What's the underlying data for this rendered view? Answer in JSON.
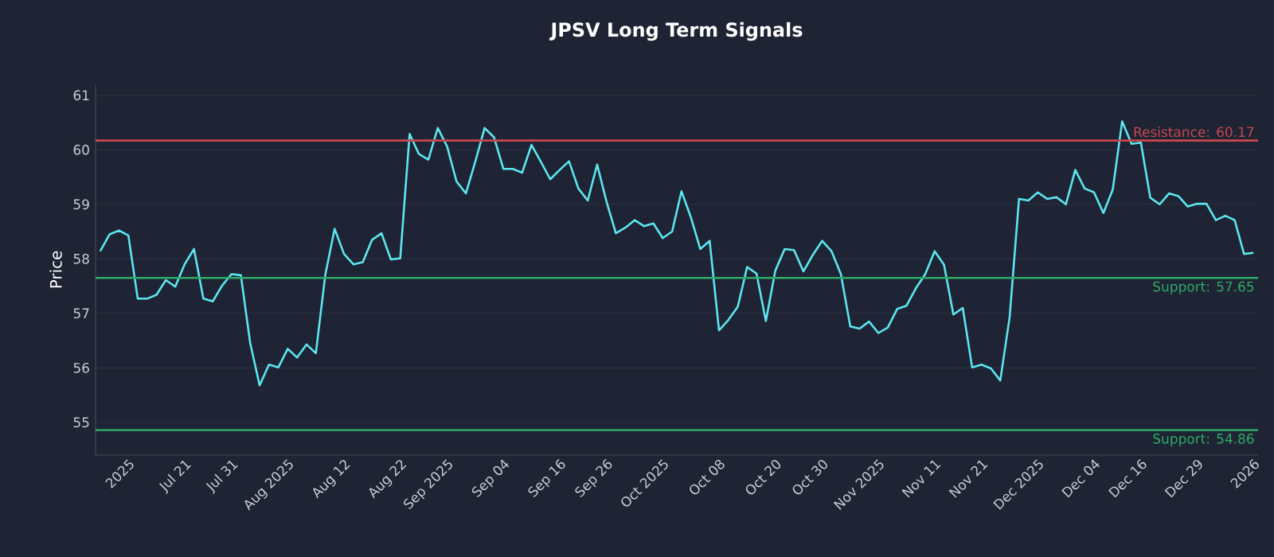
{
  "chart_data": {
    "type": "line",
    "title": "JPSV Long Term Signals",
    "ylabel": "Price",
    "categories": [
      null,
      null,
      null,
      "2025",
      null,
      null,
      null,
      null,
      null,
      "Jul 21",
      null,
      null,
      null,
      null,
      "Jul 31",
      null,
      null,
      null,
      null,
      null,
      "Aug 2025",
      null,
      null,
      null,
      null,
      null,
      "Aug 12",
      null,
      null,
      null,
      null,
      null,
      "Aug 22",
      null,
      null,
      null,
      null,
      "Sep 2025",
      null,
      null,
      null,
      null,
      null,
      "Sep 04",
      null,
      null,
      null,
      null,
      null,
      "Sep 16",
      null,
      null,
      null,
      null,
      "Sep 26",
      null,
      null,
      null,
      null,
      null,
      "Oct 2025",
      null,
      null,
      null,
      null,
      null,
      "Oct 08",
      null,
      null,
      null,
      null,
      null,
      "Oct 20",
      null,
      null,
      null,
      null,
      "Oct 30",
      null,
      null,
      null,
      null,
      null,
      "Nov 2025",
      null,
      null,
      null,
      null,
      null,
      "Nov 11",
      null,
      null,
      null,
      null,
      "Nov 21",
      null,
      null,
      null,
      null,
      null,
      "Dec 2025",
      null,
      null,
      null,
      null,
      null,
      "Dec 04",
      null,
      null,
      null,
      null,
      "Dec 16",
      null,
      null,
      null,
      null,
      null,
      "Dec 29",
      null,
      null,
      null,
      null,
      null,
      "2026"
    ],
    "series": [
      {
        "color": "#5ce6f0",
        "values": [
          58.14,
          58.45,
          58.52,
          58.43,
          57.27,
          57.27,
          57.34,
          57.61,
          57.49,
          57.9,
          58.18,
          57.27,
          57.22,
          57.51,
          57.72,
          57.7,
          56.45,
          55.68,
          56.06,
          56.01,
          56.35,
          56.19,
          56.43,
          56.27,
          57.7,
          58.55,
          58.09,
          57.9,
          57.94,
          58.35,
          58.47,
          57.99,
          58.01,
          60.29,
          59.92,
          59.82,
          60.4,
          60.06,
          59.42,
          59.2,
          59.78,
          60.4,
          60.23,
          59.65,
          59.65,
          59.58,
          60.09,
          59.78,
          59.46,
          59.63,
          59.79,
          59.29,
          59.07,
          59.73,
          59.05,
          58.47,
          58.57,
          58.71,
          58.6,
          58.65,
          58.38,
          58.5,
          59.24,
          58.76,
          58.18,
          58.33,
          56.69,
          56.88,
          57.12,
          57.85,
          57.73,
          56.86,
          57.78,
          58.18,
          58.16,
          57.77,
          58.07,
          58.33,
          58.14,
          57.72,
          56.76,
          56.72,
          56.85,
          56.64,
          56.74,
          57.08,
          57.14,
          57.46,
          57.72,
          58.14,
          57.89,
          56.98,
          57.1,
          56.01,
          56.06,
          55.99,
          55.77,
          56.93,
          59.1,
          59.07,
          59.22,
          59.1,
          59.13,
          59.0,
          59.63,
          59.29,
          59.22,
          58.84,
          59.27,
          60.52,
          60.11,
          60.13,
          59.12,
          59.0,
          59.2,
          59.15,
          58.96,
          59.01,
          59.01,
          58.71,
          58.79,
          58.71,
          58.09,
          58.11
        ]
      }
    ],
    "ylim": [
      54.4,
      61.2
    ],
    "yticks": [
      55,
      56,
      57,
      58,
      59,
      60,
      61
    ],
    "grid": "y",
    "ref_lines": [
      {
        "axis": "y",
        "value": 60.17,
        "label": "Resistance: 60.17",
        "color": "#c8474f"
      },
      {
        "axis": "y",
        "value": 57.65,
        "label": "Support: 57.65",
        "color": "#2eaa66"
      },
      {
        "axis": "y",
        "value": 54.86,
        "label": "Support: 54.86",
        "color": "#2eaa66"
      }
    ]
  }
}
